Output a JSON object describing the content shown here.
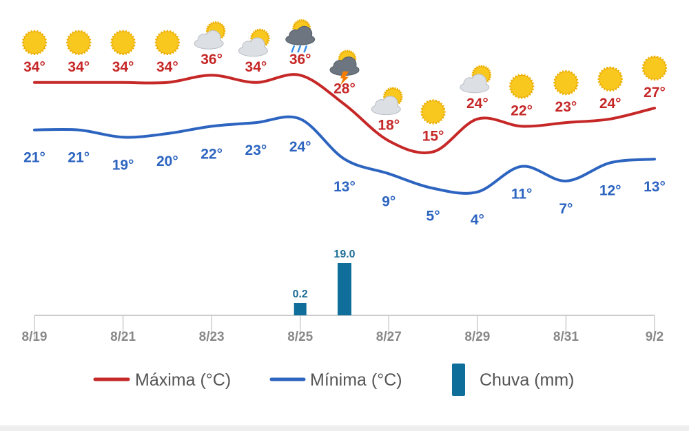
{
  "chart_data": {
    "type": "line",
    "categories": [
      "8/19",
      "8/20",
      "8/21",
      "8/22",
      "8/23",
      "8/24",
      "8/25",
      "8/26",
      "8/27",
      "8/28",
      "8/29",
      "8/30",
      "8/31",
      "9/1",
      "9/2"
    ],
    "x_tick_labels": [
      "8/19",
      "8/21",
      "8/23",
      "8/25",
      "8/27",
      "8/29",
      "8/31",
      "9/2"
    ],
    "series": [
      {
        "name": "Máxima (°C)",
        "kind": "line",
        "color": "#c62828",
        "values": [
          34,
          34,
          34,
          34,
          36,
          34,
          36,
          28,
          18,
          15,
          24,
          22,
          23,
          24,
          27
        ]
      },
      {
        "name": "Mínima (°C)",
        "kind": "line",
        "color": "#2c64c0",
        "values": [
          21,
          21,
          19,
          20,
          22,
          23,
          24,
          13,
          9,
          5,
          4,
          11,
          7,
          12,
          13
        ]
      },
      {
        "name": "Chuva (mm)",
        "kind": "bar",
        "color": "#0f6f9a",
        "values": [
          0,
          0,
          0,
          0,
          0,
          0,
          0.2,
          19.0,
          0,
          0,
          0,
          0,
          0,
          0,
          0
        ]
      }
    ],
    "temperature_labels": {
      "max": [
        "34°",
        "34°",
        "34°",
        "34°",
        "36°",
        "34°",
        "36°",
        "28°",
        "18°",
        "15°",
        "24°",
        "22°",
        "23°",
        "24°",
        "27°"
      ],
      "min": [
        "21°",
        "21°",
        "19°",
        "20°",
        "22°",
        "23°",
        "24°",
        "13°",
        "9°",
        "5°",
        "4°",
        "11°",
        "7°",
        "12°",
        "13°"
      ]
    },
    "rain_labels": [
      "",
      "",
      "",
      "",
      "",
      "",
      "0.2",
      "19.0",
      "",
      "",
      "",
      "",
      "",
      "",
      ""
    ],
    "weather_icons": [
      "sun-icon",
      "sun-icon",
      "sun-icon",
      "sun-icon",
      "partly-cloudy-icon",
      "partly-cloudy-icon",
      "rain-cloud-icon",
      "thunderstorm-icon",
      "partly-cloudy-icon",
      "sun-icon",
      "partly-cloudy-icon",
      "sun-icon",
      "sun-icon",
      "sun-icon",
      "sun-icon"
    ],
    "legend": [
      "Máxima (°C)",
      "Mínima (°C)",
      "Chuva (mm)"
    ],
    "legend_position": "bottom",
    "grid": false
  }
}
